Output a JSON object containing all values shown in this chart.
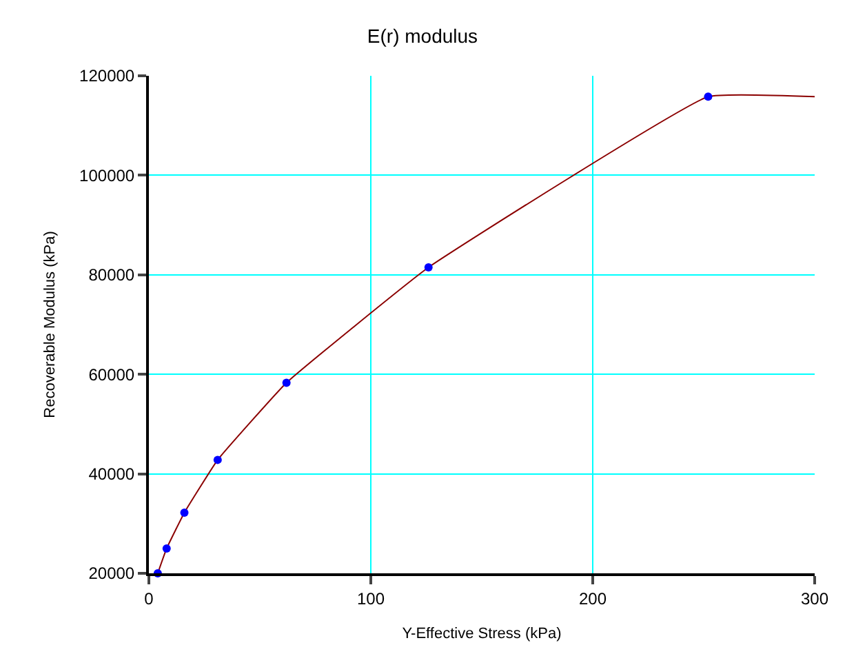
{
  "chart_data": {
    "type": "line",
    "title": "E(r) modulus",
    "xlabel": "Y-Effective Stress (kPa)",
    "ylabel": "Recoverable Modulus (kPa)",
    "xlim": [
      0,
      300
    ],
    "xticks": [
      0,
      100,
      200,
      300
    ],
    "ylim": [
      20000,
      120000
    ],
    "yticks": [
      20000,
      40000,
      60000,
      80000,
      100000,
      120000
    ],
    "grid": true,
    "series": [
      {
        "color": "#8b0000",
        "x": [
          4,
          8,
          16,
          31,
          62,
          126,
          252,
          300
        ],
        "values": [
          20000,
          25000,
          32200,
          42800,
          58300,
          81500,
          115800,
          115800
        ]
      },
      {
        "type": "scatter",
        "color": "#0000ff",
        "marker": "circle",
        "x": [
          4,
          8,
          16,
          31,
          62,
          126,
          252
        ],
        "values": [
          20000,
          25000,
          32200,
          42800,
          58300,
          81500,
          115800
        ]
      }
    ]
  }
}
